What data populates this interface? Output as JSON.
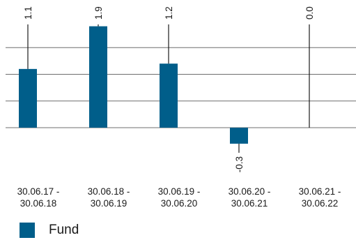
{
  "chart_data": {
    "type": "bar",
    "categories": [
      [
        "30.06.17 -",
        "30.06.18"
      ],
      [
        "30.06.18 -",
        "30.06.19"
      ],
      [
        "30.06.19 -",
        "30.06.20"
      ],
      [
        "30.06.20 -",
        "30.06.21"
      ],
      [
        "30.06.21 -",
        "30.06.22"
      ]
    ],
    "series": [
      {
        "name": "Fund",
        "values": [
          1.1,
          1.9,
          1.2,
          -0.3,
          0.0
        ],
        "color": "#005e8a"
      }
    ],
    "value_labels": [
      "1.1",
      "1.9",
      "1.2",
      "-0.3",
      "0.0"
    ],
    "ylim": [
      -0.3,
      1.9
    ],
    "gridlines": [
      0,
      0.5,
      1.0,
      1.5
    ],
    "legend_position": "bottom-left",
    "title": "",
    "xlabel": "",
    "ylabel": ""
  }
}
